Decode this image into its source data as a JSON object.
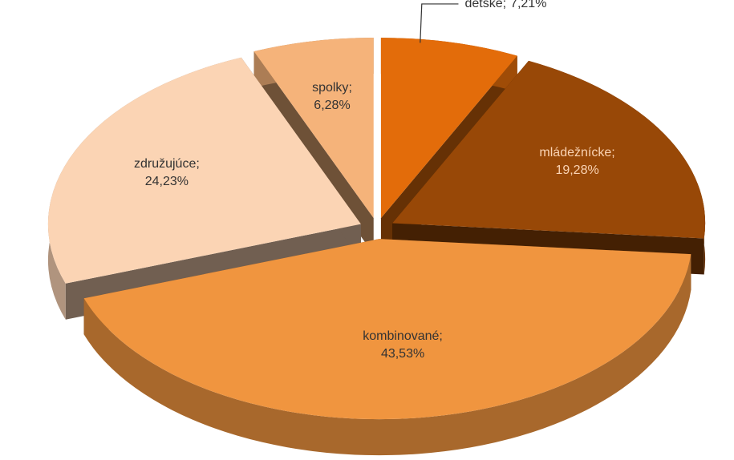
{
  "chart_data": {
    "type": "pie",
    "categories": [
      "detské",
      "mládežnícke",
      "kombinované",
      "združujúce",
      "spolky"
    ],
    "values": [
      7.21,
      19.28,
      43.53,
      24.23,
      6.28
    ],
    "value_labels": [
      "7,21%",
      "19,28%",
      "43,53%",
      "24,23%",
      "6,28%"
    ],
    "label_separator": ";",
    "colors": [
      "#e36c0a",
      "#984807",
      "#f0953f",
      "#fbd4b4",
      "#f5b37a"
    ]
  }
}
